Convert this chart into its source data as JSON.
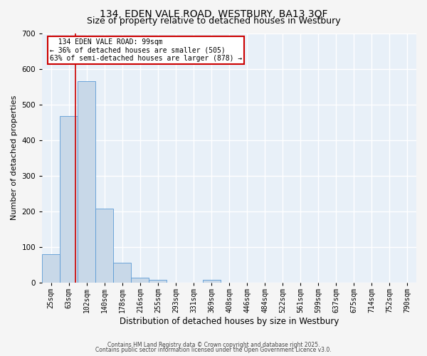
{
  "title": "134, EDEN VALE ROAD, WESTBURY, BA13 3QF",
  "subtitle": "Size of property relative to detached houses in Westbury",
  "xlabel": "Distribution of detached houses by size in Westbury",
  "ylabel": "Number of detached properties",
  "bar_color": "#c8d8e8",
  "bar_edge_color": "#5b9bd5",
  "categories": [
    "25sqm",
    "63sqm",
    "102sqm",
    "140sqm",
    "178sqm",
    "216sqm",
    "255sqm",
    "293sqm",
    "331sqm",
    "369sqm",
    "408sqm",
    "446sqm",
    "484sqm",
    "522sqm",
    "561sqm",
    "599sqm",
    "637sqm",
    "675sqm",
    "714sqm",
    "752sqm",
    "790sqm"
  ],
  "values": [
    80,
    467,
    565,
    208,
    55,
    13,
    7,
    0,
    0,
    7,
    0,
    0,
    0,
    0,
    0,
    0,
    0,
    0,
    0,
    0,
    0
  ],
  "ylim": [
    0,
    700
  ],
  "yticks": [
    0,
    100,
    200,
    300,
    400,
    500,
    600,
    700
  ],
  "vline_x": 1.37,
  "vline_color": "#cc0000",
  "annotation_text": "  134 EDEN VALE ROAD: 99sqm  \n← 36% of detached houses are smaller (505)\n63% of semi-detached houses are larger (878) →",
  "annotation_box_color": "#ffffff",
  "annotation_box_edge": "#cc0000",
  "footer1": "Contains HM Land Registry data © Crown copyright and database right 2025.",
  "footer2": "Contains public sector information licensed under the Open Government Licence v3.0.",
  "background_color": "#e8f0f8",
  "fig_background_color": "#f5f5f5",
  "grid_color": "#ffffff",
  "title_fontsize": 10,
  "subtitle_fontsize": 9,
  "tick_fontsize": 7,
  "ylabel_fontsize": 8,
  "xlabel_fontsize": 8.5,
  "footer_fontsize": 5.5
}
